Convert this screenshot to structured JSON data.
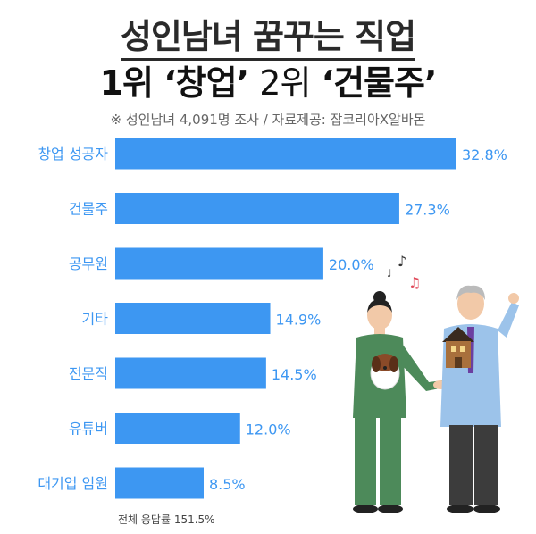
{
  "header": {
    "title_line1": "성인남녀 꿈꾸는 직업",
    "title_line2_a": "1위",
    "title_line2_b": "‘창업’",
    "title_line2_c": "2위",
    "title_line2_d": "‘건물주’",
    "subtitle": "※ 성인남녀 4,091명 조사 / 자료제공: 잡코리아X알바몬"
  },
  "footnote": "전체 응답률 151.5%",
  "colors": {
    "bar": "#3d97f2",
    "value_text": "#3d97f2",
    "label_text": "#3d97f2"
  },
  "chart_data": {
    "type": "bar",
    "orientation": "horizontal",
    "categories": [
      "창업 성공자",
      "건물주",
      "공무원",
      "기타",
      "전문직",
      "유튜버",
      "대기업 임원"
    ],
    "values": [
      32.8,
      27.3,
      20.0,
      14.9,
      14.5,
      12.0,
      8.5
    ],
    "value_labels": [
      "32.8%",
      "27.3%",
      "20.0%",
      "14.9%",
      "14.5%",
      "12.0%",
      "8.5%"
    ],
    "title": "성인남녀 꿈꾸는 직업",
    "xlim": [
      0,
      32.8
    ],
    "grid": false,
    "legend": "none"
  }
}
